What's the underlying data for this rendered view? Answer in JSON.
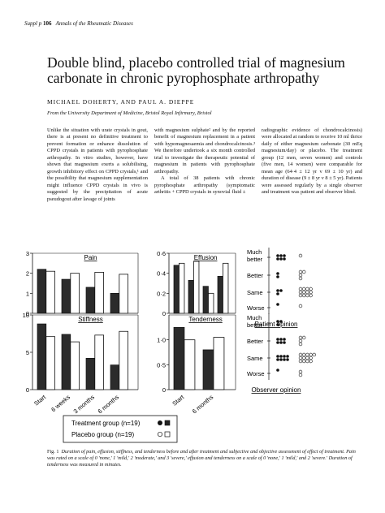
{
  "header": {
    "prefix": "Suppl p",
    "page": "106",
    "journal": "Annals of the Rheumatic Diseases"
  },
  "title": "Double blind, placebo controlled trial of magnesium carbonate in chronic pyrophosphate arthropathy",
  "authors": "MICHAEL DOHERTY, AND PAUL A. DIEPPE",
  "affiliation": "From the University Department of Medicine, Bristol Royal Infirmary, Bristol",
  "body": {
    "col1_p1": "Unlike the situation with urate crystals in gout, there is at present no definitive treatment to prevent formation or enhance dissolution of CPPD crystals in patients with pyrophosphate arthropathy. In vitro studies, however, have shown that magnesium exerts a solubilising, growth inhibitory effect on CPPD crystals,¹ and the possibility that magnesium supplementation might influence CPPD crystals in vivo is suggested by the precipitation of acute pseudogout after lavage of joints",
    "col2_p1": "with magnesium sulphate² and by the reported benefit of magnesium replacement in a patient with hypomagnesaemia and chondrocalcinosis.³ We therefore undertook a six month controlled trial to investigate the therapeutic potential of magnesium in patients with pyrophosphate arthropathy.",
    "col2_p2": "A total of 38 patients with chronic pyrophosphate arthropathy (symptomatic arthritis + CPPD crystals in synovial fluid ±",
    "col3_p1": "radiographic evidence of chondrocalcinosis) were allocated at random to receive 10 ml thrice daily of either magnesium carbonate (30 mEq magnesium/day) or placebo. The treatment group (12 men, seven women) and controls (five men, 14 women) were comparable for mean age (64·4 ± 12 yr v 69 ± 10 yr) and duration of disease (9 ± 8 yr v 8 ± 5 yr). Patients were assessed regularly by a single observer and treatment was patient and observer blind."
  },
  "figure": {
    "panels": [
      {
        "title": "Pain",
        "yticks": [
          "0",
          "1",
          "2",
          "3"
        ],
        "ymax": 3,
        "treatment": [
          2.2,
          1.7,
          1.3,
          1.0
        ],
        "placebo": [
          2.1,
          2.0,
          2.05,
          1.95
        ]
      },
      {
        "title": "Effusion",
        "yticks": [
          "0",
          "0·2",
          "0·4",
          "0·6"
        ],
        "ymax": 0.6,
        "treatment": [
          0.48,
          0.33,
          0.27,
          0.37
        ],
        "placebo": [
          0.5,
          0.52,
          0.2,
          0.5
        ]
      },
      {
        "title": "Stiffness",
        "yticks": [
          "0",
          "5",
          "10"
        ],
        "ymax": 10,
        "treatment": [
          8.8,
          7.4,
          4.2,
          3.3
        ],
        "placebo": [
          7.1,
          6.4,
          7.3,
          7.8
        ]
      },
      {
        "title": "Tenderness",
        "yticks": [
          "0",
          "0·5",
          "1·0"
        ],
        "ymax": 1.5,
        "treatment": [
          1.25,
          0.8
        ],
        "placebo": [
          1.0,
          1.05
        ]
      }
    ],
    "xlabels_left": [
      "Start",
      "6 weeks",
      "3 months",
      "6 months"
    ],
    "xlabels_right": [
      "Start",
      "6 months"
    ],
    "legend": {
      "treatment": "Treatment group (n=19)",
      "placebo": "Placebo group (n=19)"
    },
    "opinion_rows": [
      "Much better",
      "Better",
      "Same",
      "Worse"
    ],
    "patient_opinion_title": "Patient opinion",
    "observer_opinion_title": "Observer opinion",
    "patient_opinion": {
      "treatment": [
        6,
        2,
        3,
        1
      ],
      "placebo": [
        1,
        4,
        12,
        1
      ]
    },
    "observer_opinion": {
      "treatment": [
        3,
        6,
        8,
        1
      ],
      "placebo": [
        0,
        4,
        13,
        2
      ]
    }
  },
  "caption": {
    "label": "Fig. 1",
    "text": "Duration of pain, effusion, stiffness, and tenderness before and after treatment and subjective and objective assessment of effect of treatment. Pain was rated on a scale of 0 'none,' 1 'mild,' 2 'moderate,' and 3 'severe,' effusion and tenderness on a scale of 0 'none,' 1 'mild,' and 2 'severe.' Duration of tenderness was measured in minutes."
  }
}
